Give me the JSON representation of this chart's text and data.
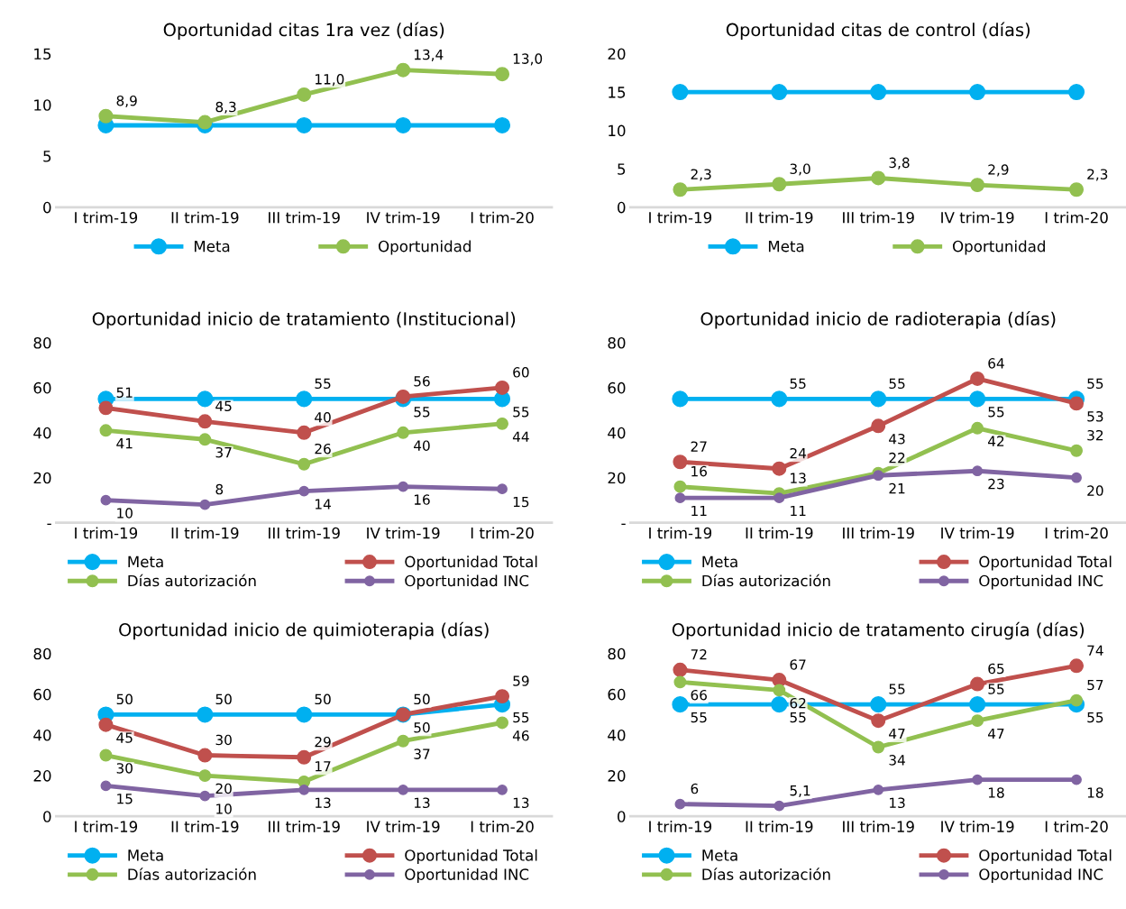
{
  "chart_data": [
    {
      "type": "line",
      "title": "Oportunidad citas 1ra vez (días)",
      "categories": [
        "I trim-19",
        "II trim-19",
        "III trim-19",
        "IV trim-19",
        "I trim-20"
      ],
      "ylim": [
        0,
        15
      ],
      "yticks": [
        0,
        5,
        10,
        15
      ],
      "grid": false,
      "legend": "bottom",
      "marker": "circle",
      "series": [
        {
          "name": "Meta",
          "color": "#00b0f0",
          "values": [
            8,
            8,
            8,
            8,
            8
          ]
        },
        {
          "name": "Oportunidad",
          "color": "#92c050",
          "values": [
            8.9,
            8.3,
            11.0,
            13.4,
            13.0
          ],
          "value_labels": [
            "8,9",
            "8,3",
            "11,0",
            "13,4",
            "13,0"
          ]
        }
      ]
    },
    {
      "type": "line",
      "title": "Oportunidad citas de control (días)",
      "categories": [
        "I trim-19",
        "II trim-19",
        "III trim-19",
        "IV trim-19",
        "I trim-20"
      ],
      "ylim": [
        0,
        20
      ],
      "yticks": [
        0,
        5,
        10,
        15,
        20
      ],
      "grid": false,
      "legend": "bottom",
      "marker": "circle",
      "series": [
        {
          "name": "Meta",
          "color": "#00b0f0",
          "values": [
            15,
            15,
            15,
            15,
            15
          ]
        },
        {
          "name": "Oportunidad",
          "color": "#92c050",
          "values": [
            2.3,
            3.0,
            3.8,
            2.9,
            2.3
          ],
          "value_labels": [
            "2,3",
            "3,0",
            "3,8",
            "2,9",
            "2,3"
          ]
        }
      ]
    },
    {
      "type": "line",
      "title": "Oportunidad inicio de tratamiento (Institucional)",
      "categories": [
        "I trim-19",
        "II trim-19",
        "III trim-19",
        "IV trim-19",
        "I trim-20"
      ],
      "ylim": [
        0,
        80
      ],
      "yticks": [
        {
          "value": 0,
          "label": "-"
        },
        20,
        40,
        60,
        80
      ],
      "grid": false,
      "legend": "bottom",
      "marker": "circle",
      "series": [
        {
          "name": "Meta",
          "color": "#00b0f0",
          "values": [
            55,
            55,
            55,
            55,
            55
          ],
          "value_labels": [
            null,
            null,
            "55",
            "55",
            "55"
          ]
        },
        {
          "name": "Oportunidad Total",
          "color": "#c0504d",
          "values": [
            51,
            45,
            40,
            56,
            60
          ],
          "value_labels": [
            "51",
            "45",
            "40",
            "56",
            "60"
          ]
        },
        {
          "name": "Días autorización",
          "color": "#92c050",
          "values": [
            41,
            37,
            26,
            40,
            44
          ],
          "value_labels": [
            "41",
            "37",
            "26",
            "40",
            "44"
          ]
        },
        {
          "name": "Oportunidad INC",
          "color": "#8064a2",
          "values": [
            10,
            8,
            14,
            16,
            15
          ],
          "value_labels": [
            "10",
            "8",
            "14",
            "16",
            "15"
          ]
        }
      ]
    },
    {
      "type": "line",
      "title": "Oportunidad inicio de radioterapia (días)",
      "categories": [
        "I trim-19",
        "II trim-19",
        "III trim-19",
        "IV trim-19",
        "I trim-20"
      ],
      "ylim": [
        0,
        80
      ],
      "yticks": [
        {
          "value": 0,
          "label": "-"
        },
        20,
        40,
        60,
        80
      ],
      "grid": false,
      "legend": "bottom",
      "marker": "circle",
      "series": [
        {
          "name": "Meta",
          "color": "#00b0f0",
          "values": [
            55,
            55,
            55,
            55,
            55
          ],
          "value_labels": [
            null,
            "55",
            "55",
            "55",
            "55"
          ]
        },
        {
          "name": "Oportunidad Total",
          "color": "#c0504d",
          "values": [
            27,
            24,
            43,
            64,
            53
          ],
          "value_labels": [
            "27",
            "24",
            "43",
            "64",
            "53"
          ]
        },
        {
          "name": "Días autorización",
          "color": "#92c050",
          "values": [
            16,
            13,
            22,
            42,
            32
          ],
          "value_labels": [
            "16",
            "13",
            "22",
            "42",
            "32"
          ]
        },
        {
          "name": "Oportunidad INC",
          "color": "#8064a2",
          "values": [
            11,
            11,
            21,
            23,
            20
          ],
          "value_labels": [
            "11",
            "11",
            "21",
            "23",
            "20"
          ]
        }
      ]
    },
    {
      "type": "line",
      "title": "Oportunidad inicio de quimioterapia (días)",
      "categories": [
        "I trim-19",
        "II trim-19",
        "III trim-19",
        "IV trim-19",
        "I trim-20"
      ],
      "ylim": [
        0,
        80
      ],
      "yticks": [
        0,
        20,
        40,
        60,
        80
      ],
      "grid": false,
      "legend": "bottom",
      "marker": "circle",
      "series": [
        {
          "name": "Meta",
          "color": "#00b0f0",
          "values": [
            50,
            50,
            50,
            50,
            55
          ],
          "value_labels": [
            "50",
            "50",
            "50",
            "50",
            "55"
          ]
        },
        {
          "name": "Oportunidad Total",
          "color": "#c0504d",
          "values": [
            45,
            30,
            29,
            50,
            59
          ],
          "value_labels": [
            "45",
            "30",
            "29",
            "50",
            "59"
          ]
        },
        {
          "name": "Días autorización",
          "color": "#92c050",
          "values": [
            30,
            20,
            17,
            37,
            46
          ],
          "value_labels": [
            "30",
            "20",
            "17",
            "37",
            "46"
          ]
        },
        {
          "name": "Oportunidad INC",
          "color": "#8064a2",
          "values": [
            15,
            10,
            13,
            13,
            13
          ],
          "value_labels": [
            "15",
            "10",
            "13",
            "13",
            "13"
          ]
        }
      ]
    },
    {
      "type": "line",
      "title": "Oportunidad inicio de tratamento cirugía (días)",
      "categories": [
        "I trim-19",
        "II trim-19",
        "III trim-19",
        "IV trim-19",
        "I trim-20"
      ],
      "ylim": [
        0,
        80
      ],
      "yticks": [
        0,
        20,
        40,
        60,
        80
      ],
      "grid": false,
      "legend": "bottom",
      "marker": "circle",
      "series": [
        {
          "name": "Meta",
          "color": "#00b0f0",
          "values": [
            55,
            55,
            55,
            55,
            55
          ],
          "value_labels": [
            "55",
            "55",
            "55",
            "55",
            "55"
          ]
        },
        {
          "name": "Oportunidad Total",
          "color": "#c0504d",
          "values": [
            72,
            67,
            47,
            65,
            74
          ],
          "value_labels": [
            "72",
            "67",
            "47",
            "65",
            "74"
          ]
        },
        {
          "name": "Días autorización",
          "color": "#92c050",
          "values": [
            66,
            62,
            34,
            47,
            57
          ],
          "value_labels": [
            "66",
            "62",
            "34",
            "47",
            "57"
          ]
        },
        {
          "name": "Oportunidad INC",
          "color": "#8064a2",
          "values": [
            6,
            5.1,
            13,
            18,
            18
          ],
          "value_labels": [
            "6",
            "5,1",
            "13",
            "18",
            "18"
          ]
        }
      ]
    }
  ]
}
